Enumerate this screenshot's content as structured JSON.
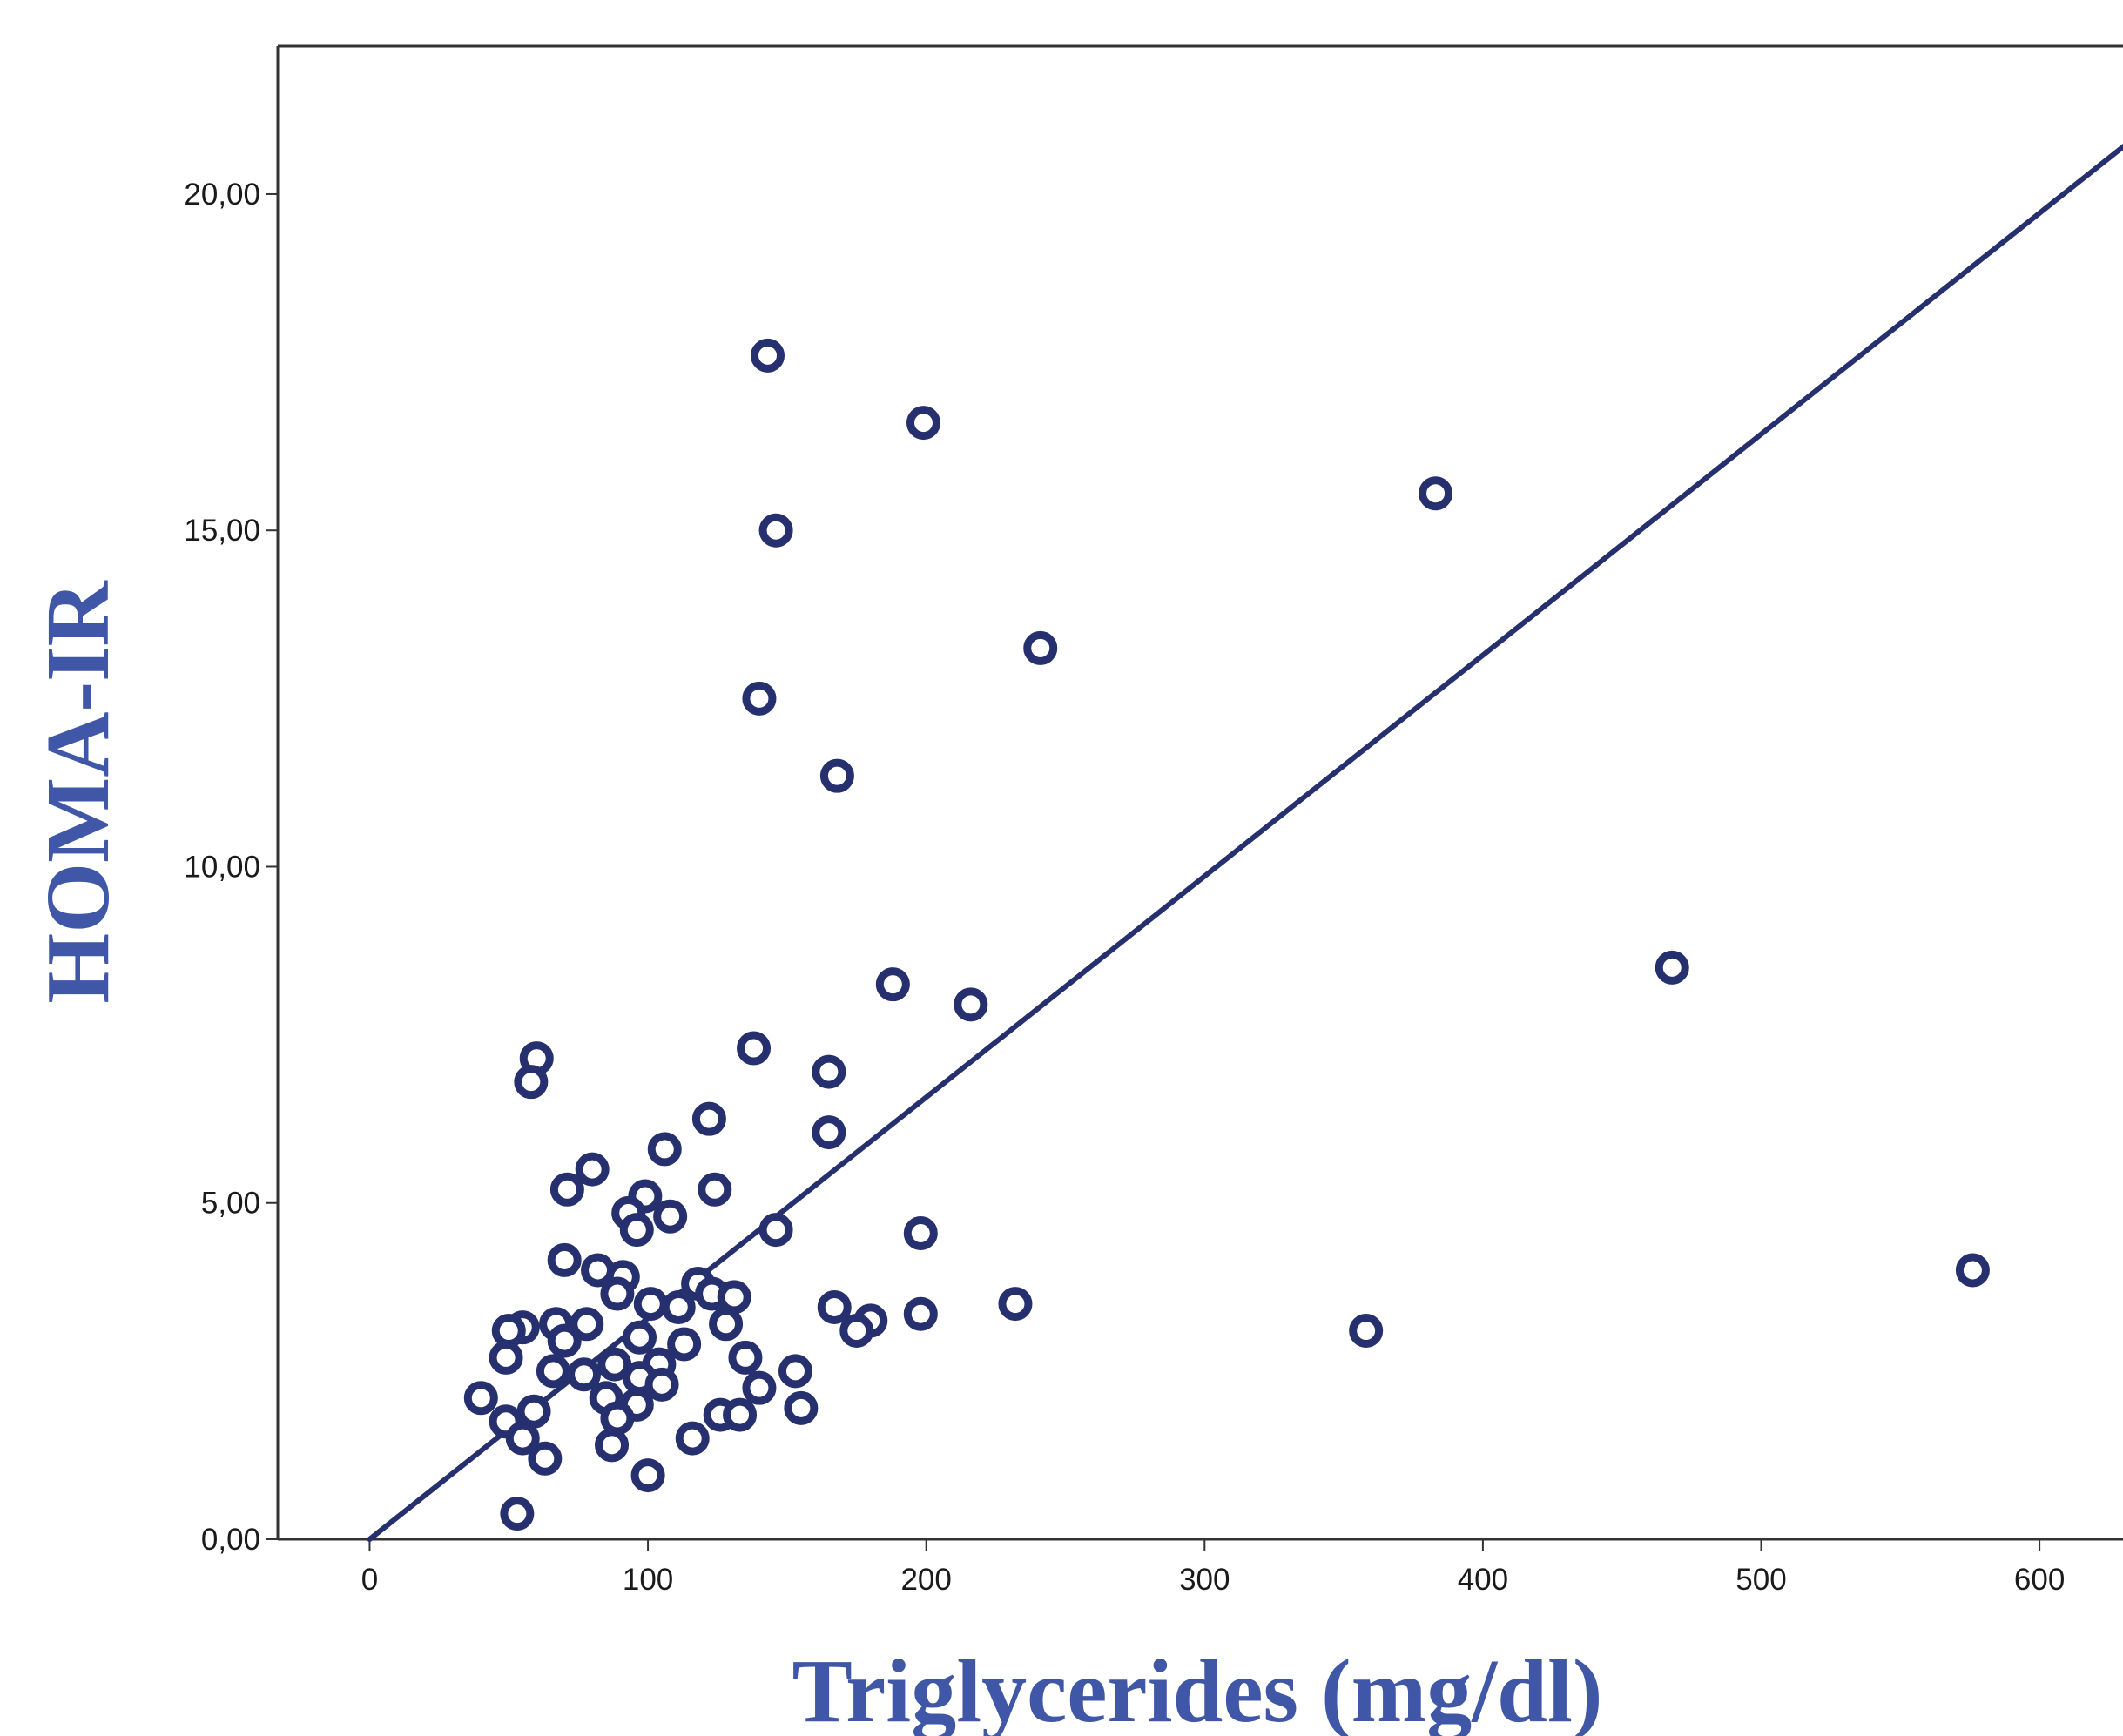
{
  "chart_data": {
    "type": "scatter",
    "title": "",
    "xlabel": "Triglycerides (mg/dl)",
    "ylabel": "HOMA-IR",
    "xlim": [
      -33,
      630
    ],
    "ylim": [
      0,
      22.2
    ],
    "x_ticks": [
      {
        "value": 0,
        "label": "0"
      },
      {
        "value": 100,
        "label": "100"
      },
      {
        "value": 200,
        "label": "200"
      },
      {
        "value": 300,
        "label": "300"
      },
      {
        "value": 400,
        "label": "400"
      },
      {
        "value": 500,
        "label": "500"
      },
      {
        "value": 600,
        "label": "600"
      }
    ],
    "y_ticks": [
      {
        "value": 0,
        "label": "0,00"
      },
      {
        "value": 5,
        "label": "5,00"
      },
      {
        "value": 10,
        "label": "10,00"
      },
      {
        "value": 15,
        "label": "15,00"
      },
      {
        "value": 20,
        "label": "20,00"
      }
    ],
    "grid": false,
    "fit_line": {
      "x": [
        0,
        636
      ],
      "y": [
        0,
        20.9
      ]
    },
    "colors": {
      "marker": "#26306f",
      "line": "#26306f",
      "axis_title": "#3f57a6",
      "frame": "#333333"
    },
    "points": [
      {
        "x": 143,
        "y": 17.6
      },
      {
        "x": 199,
        "y": 16.6
      },
      {
        "x": 146,
        "y": 15.0
      },
      {
        "x": 383,
        "y": 15.55
      },
      {
        "x": 241,
        "y": 13.25
      },
      {
        "x": 140,
        "y": 12.5
      },
      {
        "x": 168,
        "y": 11.35
      },
      {
        "x": 468,
        "y": 8.5
      },
      {
        "x": 188,
        "y": 8.25
      },
      {
        "x": 216,
        "y": 7.95
      },
      {
        "x": 138,
        "y": 7.3
      },
      {
        "x": 60,
        "y": 7.15
      },
      {
        "x": 58,
        "y": 6.8
      },
      {
        "x": 165,
        "y": 6.95
      },
      {
        "x": 165,
        "y": 6.05
      },
      {
        "x": 122,
        "y": 6.25
      },
      {
        "x": 106,
        "y": 5.8
      },
      {
        "x": 80,
        "y": 5.5
      },
      {
        "x": 71,
        "y": 5.2
      },
      {
        "x": 124,
        "y": 5.2
      },
      {
        "x": 99,
        "y": 5.1
      },
      {
        "x": 93,
        "y": 4.85
      },
      {
        "x": 108,
        "y": 4.8
      },
      {
        "x": 96,
        "y": 4.6
      },
      {
        "x": 146,
        "y": 4.6
      },
      {
        "x": 198,
        "y": 4.55
      },
      {
        "x": 70,
        "y": 4.15
      },
      {
        "x": 82,
        "y": 4.0
      },
      {
        "x": 91,
        "y": 3.9
      },
      {
        "x": 118,
        "y": 3.8
      },
      {
        "x": 89,
        "y": 3.65
      },
      {
        "x": 123,
        "y": 3.65
      },
      {
        "x": 131,
        "y": 3.6
      },
      {
        "x": 101,
        "y": 3.5
      },
      {
        "x": 111,
        "y": 3.45
      },
      {
        "x": 167,
        "y": 3.45
      },
      {
        "x": 232,
        "y": 3.5
      },
      {
        "x": 198,
        "y": 3.35
      },
      {
        "x": 180,
        "y": 3.25
      },
      {
        "x": 175,
        "y": 3.1
      },
      {
        "x": 128,
        "y": 3.2
      },
      {
        "x": 67,
        "y": 3.2
      },
      {
        "x": 78,
        "y": 3.2
      },
      {
        "x": 55,
        "y": 3.15
      },
      {
        "x": 50,
        "y": 3.1
      },
      {
        "x": 358,
        "y": 3.1
      },
      {
        "x": 576,
        "y": 4.0
      },
      {
        "x": 70,
        "y": 2.95
      },
      {
        "x": 97,
        "y": 3.0
      },
      {
        "x": 113,
        "y": 2.9
      },
      {
        "x": 49,
        "y": 2.7
      },
      {
        "x": 135,
        "y": 2.7
      },
      {
        "x": 88,
        "y": 2.6
      },
      {
        "x": 104,
        "y": 2.6
      },
      {
        "x": 66,
        "y": 2.5
      },
      {
        "x": 77,
        "y": 2.45
      },
      {
        "x": 153,
        "y": 2.5
      },
      {
        "x": 97,
        "y": 2.4
      },
      {
        "x": 105,
        "y": 2.3
      },
      {
        "x": 140,
        "y": 2.25
      },
      {
        "x": 40,
        "y": 2.1
      },
      {
        "x": 85,
        "y": 2.1
      },
      {
        "x": 96,
        "y": 2.0
      },
      {
        "x": 59,
        "y": 1.9
      },
      {
        "x": 155,
        "y": 1.95
      },
      {
        "x": 126,
        "y": 1.85
      },
      {
        "x": 133,
        "y": 1.85
      },
      {
        "x": 49,
        "y": 1.75
      },
      {
        "x": 89,
        "y": 1.8
      },
      {
        "x": 55,
        "y": 1.5
      },
      {
        "x": 116,
        "y": 1.5
      },
      {
        "x": 87,
        "y": 1.4
      },
      {
        "x": 63,
        "y": 1.2
      },
      {
        "x": 100,
        "y": 0.95
      },
      {
        "x": 53,
        "y": 0.38
      }
    ]
  }
}
